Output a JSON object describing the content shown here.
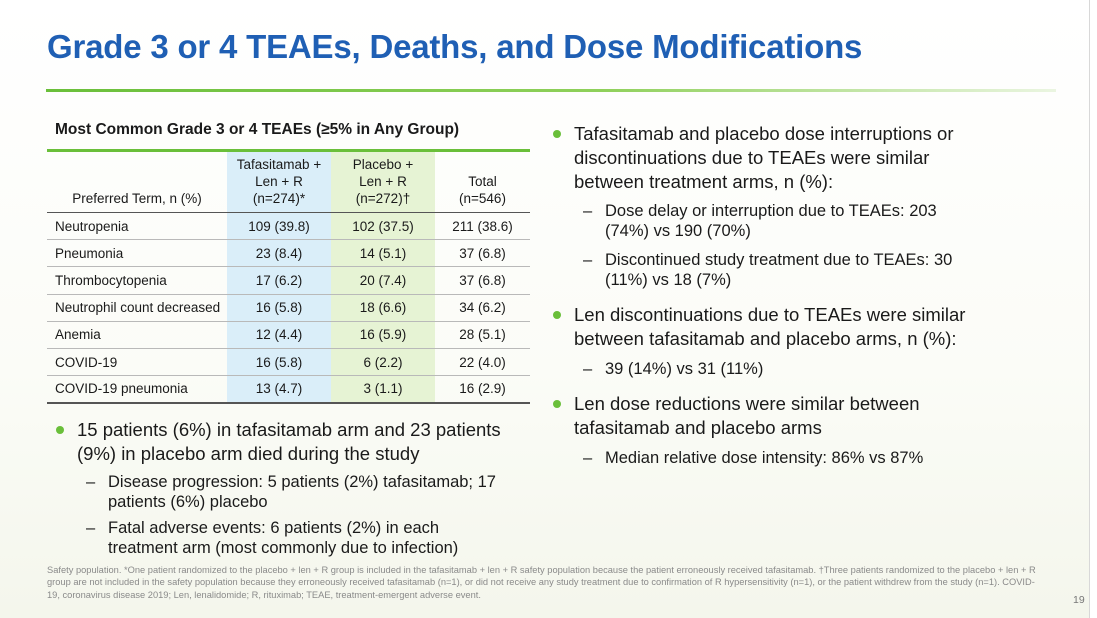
{
  "title": "Grade 3 or 4 TEAEs, Deaths, and Dose Modifications",
  "table": {
    "caption": "Most Common Grade 3 or 4 TEAEs (≥5% in Any Group)",
    "headers": {
      "term": "Preferred Term, n (%)",
      "taf_l1": "Tafasitamab +",
      "taf_l2": "Len + R",
      "taf_l3": "(n=274)*",
      "pla_l1": "Placebo +",
      "pla_l2": "Len + R",
      "pla_l3": "(n=272)†",
      "tot_l1": "Total",
      "tot_l2": "(n=546)"
    },
    "rows": [
      {
        "term": "Neutropenia",
        "taf": "109 (39.8)",
        "pla": "102 (37.5)",
        "tot": "211 (38.6)"
      },
      {
        "term": "Pneumonia",
        "taf": "23 (8.4)",
        "pla": "14 (5.1)",
        "tot": "37 (6.8)"
      },
      {
        "term": "Thrombocytopenia",
        "taf": "17 (6.2)",
        "pla": "20 (7.4)",
        "tot": "37 (6.8)"
      },
      {
        "term": "Neutrophil count decreased",
        "taf": "16 (5.8)",
        "pla": "18 (6.6)",
        "tot": "34 (6.2)"
      },
      {
        "term": "Anemia",
        "taf": "12 (4.4)",
        "pla": "16 (5.9)",
        "tot": "28 (5.1)"
      },
      {
        "term": "COVID-19",
        "taf": "16 (5.8)",
        "pla": "6 (2.2)",
        "tot": "22 (4.0)"
      },
      {
        "term": "COVID-19 pneumonia",
        "taf": "13 (4.7)",
        "pla": "3 (1.1)",
        "tot": "16 (2.9)"
      }
    ]
  },
  "left_bullets": {
    "main": "15 patients (6%) in tafasitamab arm and 23 patients (9%) in placebo arm died during the study",
    "sub1": "Disease progression: 5 patients (2%) tafasitamab; 17 patients (6%) placebo",
    "sub2": "Fatal adverse events: 6 patients (2%) in each treatment arm (most commonly due to infection)"
  },
  "right_bullets": {
    "b1": "Tafasitamab and placebo dose interruptions or discontinuations due to TEAEs were similar between treatment arms, n (%):",
    "b1_sub1": "Dose delay or interruption due to TEAEs: 203 (74%) vs 190 (70%)",
    "b1_sub2": "Discontinued study treatment due to TEAEs: 30 (11%) vs 18 (7%)",
    "b2": "Len discontinuations due to TEAEs were similar between tafasitamab and placebo arms, n (%):",
    "b2_sub1": "39 (14%) vs 31 (11%)",
    "b3": "Len dose reductions were similar between tafasitamab and placebo arms",
    "b3_sub1": "Median relative dose intensity: 86% vs 87%"
  },
  "footnote": "Safety population. *One patient randomized to the placebo + len + R group is included in the tafasitamab + len + R safety population because the patient erroneously received tafasitamab. †Three patients randomized to the placebo + len + R group are not included in the safety population because they erroneously received tafasitamab (n=1), or did not receive any study treatment due to confirmation of R hypersensitivity (n=1), or the patient withdrew from the study (n=1). COVID-19, coronavirus disease 2019; Len, lenalidomide; R, rituximab; TEAE, treatment-emergent adverse event.",
  "page_number": "19",
  "colors": {
    "title_blue": "#1f5fb4",
    "accent_green": "#6abf3a",
    "taf_col_bg": "#daeef9",
    "pla_col_bg": "#e6f3d4"
  }
}
